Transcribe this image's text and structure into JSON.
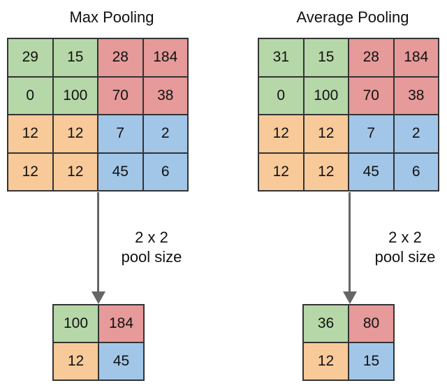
{
  "colors": {
    "green": "#b6d7a8",
    "red": "#e69a9a",
    "orange": "#f8ca9a",
    "blue": "#a1c6e8",
    "border": "#333333",
    "arrow": "#666666"
  },
  "panels": [
    {
      "title": "Max Pooling",
      "pool_label": [
        "2 x 2",
        "pool size"
      ],
      "input": [
        [
          {
            "v": "29",
            "c": "green"
          },
          {
            "v": "15",
            "c": "green"
          },
          {
            "v": "28",
            "c": "red"
          },
          {
            "v": "184",
            "c": "red"
          }
        ],
        [
          {
            "v": "0",
            "c": "green"
          },
          {
            "v": "100",
            "c": "green"
          },
          {
            "v": "70",
            "c": "red"
          },
          {
            "v": "38",
            "c": "red"
          }
        ],
        [
          {
            "v": "12",
            "c": "orange"
          },
          {
            "v": "12",
            "c": "orange"
          },
          {
            "v": "7",
            "c": "blue"
          },
          {
            "v": "2",
            "c": "blue"
          }
        ],
        [
          {
            "v": "12",
            "c": "orange"
          },
          {
            "v": "12",
            "c": "orange"
          },
          {
            "v": "45",
            "c": "blue"
          },
          {
            "v": "6",
            "c": "blue"
          }
        ]
      ],
      "output": [
        [
          {
            "v": "100",
            "c": "green"
          },
          {
            "v": "184",
            "c": "red"
          }
        ],
        [
          {
            "v": "12",
            "c": "orange"
          },
          {
            "v": "45",
            "c": "blue"
          }
        ]
      ]
    },
    {
      "title": "Average Pooling",
      "pool_label": [
        "2 x 2",
        "pool size"
      ],
      "input": [
        [
          {
            "v": "31",
            "c": "green"
          },
          {
            "v": "15",
            "c": "green"
          },
          {
            "v": "28",
            "c": "red"
          },
          {
            "v": "184",
            "c": "red"
          }
        ],
        [
          {
            "v": "0",
            "c": "green"
          },
          {
            "v": "100",
            "c": "green"
          },
          {
            "v": "70",
            "c": "red"
          },
          {
            "v": "38",
            "c": "red"
          }
        ],
        [
          {
            "v": "12",
            "c": "orange"
          },
          {
            "v": "12",
            "c": "orange"
          },
          {
            "v": "7",
            "c": "blue"
          },
          {
            "v": "2",
            "c": "blue"
          }
        ],
        [
          {
            "v": "12",
            "c": "orange"
          },
          {
            "v": "12",
            "c": "orange"
          },
          {
            "v": "45",
            "c": "blue"
          },
          {
            "v": "6",
            "c": "blue"
          }
        ]
      ],
      "output": [
        [
          {
            "v": "36",
            "c": "green"
          },
          {
            "v": "80",
            "c": "red"
          }
        ],
        [
          {
            "v": "12",
            "c": "orange"
          },
          {
            "v": "15",
            "c": "blue"
          }
        ]
      ]
    }
  ]
}
